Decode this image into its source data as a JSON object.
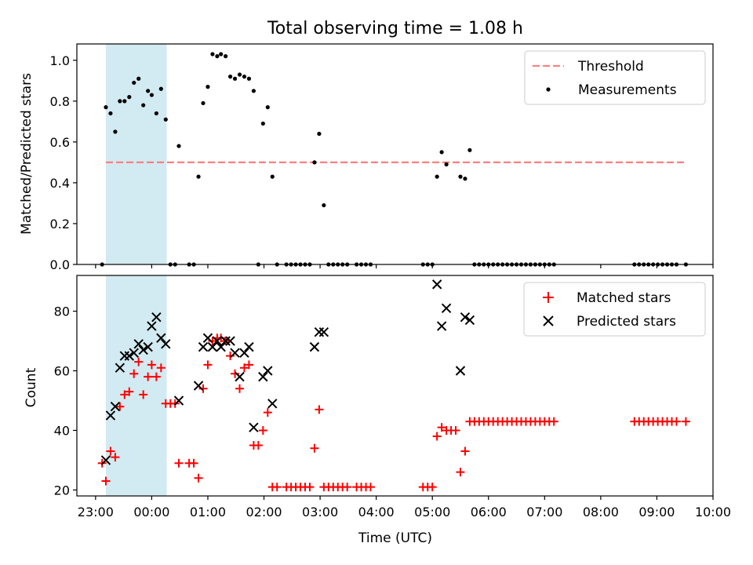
{
  "figure": {
    "title": "Total observing time = 1.08 h",
    "xlabel": "Time (UTC)"
  },
  "chart_data": [
    {
      "type": "scatter",
      "ylabel": "Matched/Predicted stars",
      "ylim": [
        0,
        1.08
      ],
      "yticks": [
        0.0,
        0.2,
        0.4,
        0.6,
        0.8,
        1.0
      ],
      "ytick_labels": [
        "0.0",
        "0.2",
        "0.4",
        "0.6",
        "0.8",
        "1.0"
      ],
      "xlim": [
        "22:40",
        "10:00"
      ],
      "xticks": [
        "23:00",
        "00:00",
        "01:00",
        "02:00",
        "03:00",
        "04:00",
        "05:00",
        "06:00",
        "07:00",
        "08:00",
        "09:00",
        "10:00"
      ],
      "shaded_interval": [
        "23:11",
        "00:16"
      ],
      "shade_color": "#add8e6",
      "grid": false,
      "legend": "top-right",
      "threshold": {
        "name": "Threshold",
        "value": 0.5,
        "x_range": [
          "23:11",
          "09:31"
        ],
        "color": "#ff7f7f",
        "style": "dashed"
      },
      "series": [
        {
          "name": "Measurements",
          "marker": "dot",
          "color": "#000000",
          "points": [
            [
              "23:07",
              0.0
            ],
            [
              "23:11",
              0.77
            ],
            [
              "23:16",
              0.74
            ],
            [
              "23:21",
              0.65
            ],
            [
              "23:26",
              0.8
            ],
            [
              "23:31",
              0.8
            ],
            [
              "23:36",
              0.82
            ],
            [
              "23:41",
              0.89
            ],
            [
              "23:46",
              0.91
            ],
            [
              "23:51",
              0.78
            ],
            [
              "23:56",
              0.85
            ],
            [
              "00:00",
              0.83
            ],
            [
              "00:05",
              0.74
            ],
            [
              "00:10",
              0.86
            ],
            [
              "00:15",
              0.71
            ],
            [
              "00:20",
              0.0
            ],
            [
              "00:25",
              0.0
            ],
            [
              "00:29",
              0.58
            ],
            [
              "00:40",
              0.0
            ],
            [
              "00:45",
              0.0
            ],
            [
              "00:50",
              0.43
            ],
            [
              "00:55",
              0.79
            ],
            [
              "01:00",
              0.87
            ],
            [
              "01:05",
              1.03
            ],
            [
              "01:10",
              1.02
            ],
            [
              "01:14",
              1.03
            ],
            [
              "01:19",
              1.02
            ],
            [
              "01:24",
              0.92
            ],
            [
              "01:29",
              0.91
            ],
            [
              "01:34",
              0.93
            ],
            [
              "01:39",
              0.92
            ],
            [
              "01:44",
              0.91
            ],
            [
              "01:49",
              0.85
            ],
            [
              "01:54",
              0.0
            ],
            [
              "01:59",
              0.69
            ],
            [
              "02:04",
              0.77
            ],
            [
              "02:09",
              0.43
            ],
            [
              "02:14",
              0.0
            ],
            [
              "02:24",
              0.0
            ],
            [
              "02:29",
              0.0
            ],
            [
              "02:34",
              0.0
            ],
            [
              "02:39",
              0.0
            ],
            [
              "02:44",
              0.0
            ],
            [
              "02:49",
              0.0
            ],
            [
              "02:54",
              0.5
            ],
            [
              "02:59",
              0.64
            ],
            [
              "03:04",
              0.29
            ],
            [
              "03:09",
              0.0
            ],
            [
              "03:14",
              0.0
            ],
            [
              "03:19",
              0.0
            ],
            [
              "03:24",
              0.0
            ],
            [
              "03:29",
              0.0
            ],
            [
              "03:39",
              0.0
            ],
            [
              "03:44",
              0.0
            ],
            [
              "03:49",
              0.0
            ],
            [
              "03:54",
              0.0
            ],
            [
              "04:50",
              0.0
            ],
            [
              "04:55",
              0.0
            ],
            [
              "05:00",
              0.0
            ],
            [
              "05:05",
              0.43
            ],
            [
              "05:10",
              0.55
            ],
            [
              "05:15",
              0.49
            ],
            [
              "05:30",
              0.43
            ],
            [
              "05:35",
              0.42
            ],
            [
              "05:40",
              0.56
            ],
            [
              "05:45",
              0.0
            ],
            [
              "05:50",
              0.0
            ],
            [
              "05:55",
              0.0
            ],
            [
              "06:00",
              0.0
            ],
            [
              "06:05",
              0.0
            ],
            [
              "06:10",
              0.0
            ],
            [
              "06:15",
              0.0
            ],
            [
              "06:20",
              0.0
            ],
            [
              "06:25",
              0.0
            ],
            [
              "06:30",
              0.0
            ],
            [
              "06:35",
              0.0
            ],
            [
              "06:40",
              0.0
            ],
            [
              "06:45",
              0.0
            ],
            [
              "06:50",
              0.0
            ],
            [
              "06:55",
              0.0
            ],
            [
              "07:00",
              0.0
            ],
            [
              "07:05",
              0.0
            ],
            [
              "07:10",
              0.0
            ],
            [
              "08:36",
              0.0
            ],
            [
              "08:41",
              0.0
            ],
            [
              "08:46",
              0.0
            ],
            [
              "08:51",
              0.0
            ],
            [
              "08:56",
              0.0
            ],
            [
              "09:01",
              0.0
            ],
            [
              "09:06",
              0.0
            ],
            [
              "09:11",
              0.0
            ],
            [
              "09:16",
              0.0
            ],
            [
              "09:21",
              0.0
            ],
            [
              "09:31",
              0.0
            ]
          ]
        }
      ]
    },
    {
      "type": "scatter",
      "ylabel": "Count",
      "ylim": [
        18,
        92
      ],
      "yticks": [
        20,
        40,
        60,
        80
      ],
      "ytick_labels": [
        "20",
        "40",
        "60",
        "80"
      ],
      "xlim": [
        "22:40",
        "10:00"
      ],
      "xticks": [
        "23:00",
        "00:00",
        "01:00",
        "02:00",
        "03:00",
        "04:00",
        "05:00",
        "06:00",
        "07:00",
        "08:00",
        "09:00",
        "10:00"
      ],
      "xtick_labels": [
        "23:00",
        "00:00",
        "01:00",
        "02:00",
        "03:00",
        "04:00",
        "05:00",
        "06:00",
        "07:00",
        "08:00",
        "09:00",
        "10:00"
      ],
      "shaded_interval": [
        "23:11",
        "00:16"
      ],
      "shade_color": "#add8e6",
      "grid": false,
      "legend": "top-right",
      "series": [
        {
          "name": "Matched stars",
          "marker": "plus",
          "color": "#ff0000",
          "points": [
            [
              "23:07",
              29
            ],
            [
              "23:11",
              23
            ],
            [
              "23:16",
              33
            ],
            [
              "23:21",
              31
            ],
            [
              "23:26",
              48
            ],
            [
              "23:31",
              52
            ],
            [
              "23:36",
              53
            ],
            [
              "23:41",
              59
            ],
            [
              "23:46",
              63
            ],
            [
              "23:51",
              52
            ],
            [
              "23:56",
              58
            ],
            [
              "00:00",
              62
            ],
            [
              "00:05",
              58
            ],
            [
              "00:10",
              61
            ],
            [
              "00:15",
              49
            ],
            [
              "00:20",
              49
            ],
            [
              "00:25",
              49
            ],
            [
              "00:29",
              29
            ],
            [
              "00:40",
              29
            ],
            [
              "00:45",
              29
            ],
            [
              "00:50",
              24
            ],
            [
              "00:55",
              54
            ],
            [
              "01:00",
              62
            ],
            [
              "01:05",
              70
            ],
            [
              "01:10",
              71
            ],
            [
              "01:14",
              71
            ],
            [
              "01:19",
              70
            ],
            [
              "01:24",
              65
            ],
            [
              "01:29",
              59
            ],
            [
              "01:34",
              54
            ],
            [
              "01:39",
              61
            ],
            [
              "01:44",
              62
            ],
            [
              "01:49",
              35
            ],
            [
              "01:54",
              35
            ],
            [
              "01:59",
              40
            ],
            [
              "02:04",
              46
            ],
            [
              "02:09",
              21
            ],
            [
              "02:14",
              21
            ],
            [
              "02:24",
              21
            ],
            [
              "02:29",
              21
            ],
            [
              "02:34",
              21
            ],
            [
              "02:39",
              21
            ],
            [
              "02:44",
              21
            ],
            [
              "02:49",
              21
            ],
            [
              "02:54",
              34
            ],
            [
              "02:59",
              47
            ],
            [
              "03:04",
              21
            ],
            [
              "03:09",
              21
            ],
            [
              "03:14",
              21
            ],
            [
              "03:19",
              21
            ],
            [
              "03:24",
              21
            ],
            [
              "03:29",
              21
            ],
            [
              "03:39",
              21
            ],
            [
              "03:44",
              21
            ],
            [
              "03:49",
              21
            ],
            [
              "03:54",
              21
            ],
            [
              "04:50",
              21
            ],
            [
              "04:55",
              21
            ],
            [
              "05:00",
              21
            ],
            [
              "05:05",
              38
            ],
            [
              "05:10",
              41
            ],
            [
              "05:15",
              40
            ],
            [
              "05:20",
              40
            ],
            [
              "05:25",
              40
            ],
            [
              "05:30",
              26
            ],
            [
              "05:35",
              33
            ],
            [
              "05:40",
              43
            ],
            [
              "05:45",
              43
            ],
            [
              "05:50",
              43
            ],
            [
              "05:55",
              43
            ],
            [
              "06:00",
              43
            ],
            [
              "06:05",
              43
            ],
            [
              "06:10",
              43
            ],
            [
              "06:15",
              43
            ],
            [
              "06:20",
              43
            ],
            [
              "06:25",
              43
            ],
            [
              "06:30",
              43
            ],
            [
              "06:35",
              43
            ],
            [
              "06:40",
              43
            ],
            [
              "06:45",
              43
            ],
            [
              "06:50",
              43
            ],
            [
              "06:55",
              43
            ],
            [
              "07:00",
              43
            ],
            [
              "07:05",
              43
            ],
            [
              "07:10",
              43
            ],
            [
              "08:36",
              43
            ],
            [
              "08:41",
              43
            ],
            [
              "08:46",
              43
            ],
            [
              "08:51",
              43
            ],
            [
              "08:56",
              43
            ],
            [
              "09:01",
              43
            ],
            [
              "09:06",
              43
            ],
            [
              "09:11",
              43
            ],
            [
              "09:16",
              43
            ],
            [
              "09:21",
              43
            ],
            [
              "09:31",
              43
            ]
          ]
        },
        {
          "name": "Predicted stars",
          "marker": "x",
          "color": "#000000",
          "points": [
            [
              "23:11",
              30
            ],
            [
              "23:16",
              45
            ],
            [
              "23:21",
              48
            ],
            [
              "23:26",
              61
            ],
            [
              "23:31",
              65
            ],
            [
              "23:36",
              65
            ],
            [
              "23:41",
              66
            ],
            [
              "23:46",
              69
            ],
            [
              "23:51",
              67
            ],
            [
              "23:56",
              68
            ],
            [
              "00:00",
              75
            ],
            [
              "00:05",
              78
            ],
            [
              "00:10",
              71
            ],
            [
              "00:15",
              69
            ],
            [
              "00:29",
              50
            ],
            [
              "00:50",
              55
            ],
            [
              "00:55",
              68
            ],
            [
              "01:00",
              71
            ],
            [
              "01:05",
              68
            ],
            [
              "01:10",
              70
            ],
            [
              "01:14",
              68
            ],
            [
              "01:19",
              70
            ],
            [
              "01:24",
              70
            ],
            [
              "01:29",
              66
            ],
            [
              "01:34",
              58
            ],
            [
              "01:39",
              66
            ],
            [
              "01:44",
              68
            ],
            [
              "01:49",
              41
            ],
            [
              "01:59",
              58
            ],
            [
              "02:04",
              60
            ],
            [
              "02:09",
              49
            ],
            [
              "02:54",
              68
            ],
            [
              "02:59",
              73
            ],
            [
              "03:04",
              73
            ],
            [
              "05:05",
              89
            ],
            [
              "05:10",
              75
            ],
            [
              "05:15",
              81
            ],
            [
              "05:30",
              60
            ],
            [
              "05:35",
              78
            ],
            [
              "05:40",
              77
            ]
          ]
        }
      ]
    }
  ]
}
